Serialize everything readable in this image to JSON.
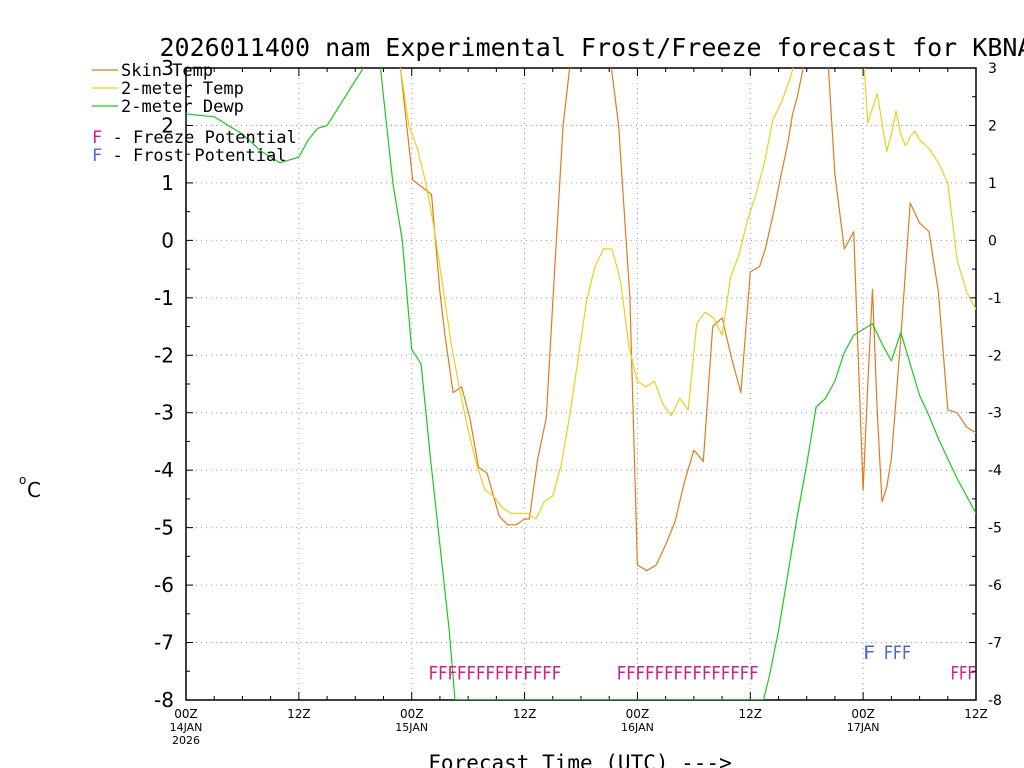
{
  "chart_data": {
    "type": "line",
    "title": "2026011400 nam Experimental Frost/Freeze forecast for KBNA",
    "xlabel": "Forecast Time (UTC) --->",
    "ylabel": "°C",
    "ylabel_unit": "o",
    "ylabel_letter": "C",
    "ylim": [
      -8,
      3
    ],
    "xlim": [
      0,
      84
    ],
    "yticks": [
      3,
      2,
      1,
      0,
      -1,
      -2,
      -3,
      -4,
      -5,
      -6,
      -7,
      -8
    ],
    "ytick_labels": [
      "3",
      "2",
      "1",
      "0",
      "-1",
      "-2",
      "-3",
      "-4",
      "-5",
      "-6",
      "-7",
      "-8"
    ],
    "xticks": [
      {
        "hour": 0,
        "label": "00Z",
        "date": "14JAN",
        "year": "2026"
      },
      {
        "hour": 12,
        "label": "12Z",
        "date": "",
        "year": ""
      },
      {
        "hour": 24,
        "label": "00Z",
        "date": "15JAN",
        "year": ""
      },
      {
        "hour": 36,
        "label": "12Z",
        "date": "",
        "year": ""
      },
      {
        "hour": 48,
        "label": "00Z",
        "date": "16JAN",
        "year": ""
      },
      {
        "hour": 60,
        "label": "12Z",
        "date": "",
        "year": ""
      },
      {
        "hour": 72,
        "label": "00Z",
        "date": "17JAN",
        "year": ""
      },
      {
        "hour": 84,
        "label": "12Z",
        "date": "",
        "year": ""
      }
    ],
    "grid": true,
    "legend": [
      {
        "name": "Skin Temp",
        "color": "#e07b1f"
      },
      {
        "name": "2-meter Temp",
        "color": "#e6d21e"
      },
      {
        "name": "2-meter Dewp",
        "color": "#1ec81e"
      }
    ],
    "potential_legend": [
      {
        "letter": "F",
        "text": " - Freeze Potential",
        "color": "#d21e8c"
      },
      {
        "letter": "F",
        "text": " - Frost Potential",
        "color": "#4b64dc"
      }
    ],
    "series": [
      {
        "name": "Skin Temp",
        "color": "#e07b1f",
        "x": [
          21.1,
          22.8,
          24.1,
          26.1,
          27.0,
          27.5,
          28.4,
          29.3,
          30.2,
          31.1,
          32.0,
          33.3,
          34.2,
          35.1,
          36.0,
          36.5,
          37.4,
          38.3,
          39.2,
          40.1,
          41.0,
          45.0,
          46.0,
          47.2,
          48.0,
          49.0,
          50.0,
          51.0,
          52.0,
          53.0,
          54.0,
          55.0,
          56.0,
          57.0,
          58.0,
          59.0,
          60.0,
          61.0,
          61.6,
          62.5,
          63.1,
          64.0,
          64.5,
          65.0,
          66.0,
          67.0,
          68.2,
          69.0,
          70.0,
          71.0,
          72.0,
          72.5,
          73.0,
          73.5,
          74.0,
          74.5,
          75.0,
          76.0,
          77.0,
          78.0,
          79.0,
          80.0,
          81.0,
          82.0,
          83.0,
          84.0
        ],
        "values": [
          3.3,
          3.0,
          1.05,
          0.8,
          -0.9,
          -1.6,
          -2.65,
          -2.55,
          -3.1,
          -3.95,
          -4.05,
          -4.8,
          -4.95,
          -4.95,
          -4.85,
          -4.85,
          -3.8,
          -3.1,
          -0.5,
          2.0,
          3.3,
          3.3,
          2.0,
          -1.0,
          -5.65,
          -5.75,
          -5.65,
          -5.3,
          -4.9,
          -4.2,
          -3.65,
          -3.85,
          -1.5,
          -1.35,
          -2.05,
          -2.65,
          -0.55,
          -0.45,
          -0.15,
          0.5,
          1.0,
          1.7,
          2.2,
          2.5,
          3.3,
          3.3,
          3.3,
          1.15,
          -0.15,
          0.15,
          -4.35,
          -2.5,
          -0.85,
          -3.0,
          -4.55,
          -4.3,
          -3.8,
          -1.7,
          0.65,
          0.3,
          0.15,
          -0.9,
          -2.95,
          -3.0,
          -3.25,
          -3.35
        ]
      },
      {
        "name": "2-meter Temp",
        "color": "#e6d21e",
        "x": [
          21.1,
          22.8,
          23.7,
          24.6,
          25.5,
          26.4,
          27.3,
          28.2,
          29.1,
          30.0,
          30.9,
          31.8,
          32.7,
          33.6,
          34.5,
          35.4,
          36.3,
          37.2,
          38.1,
          39.0,
          39.9,
          40.8,
          41.7,
          42.6,
          43.5,
          44.4,
          45.3,
          46.2,
          47.1,
          48.0,
          48.9,
          49.8,
          50.7,
          51.6,
          52.5,
          53.4,
          54.3,
          55.2,
          56.1,
          57.0,
          57.9,
          58.8,
          59.7,
          60.6,
          61.5,
          62.4,
          63.3,
          64.2,
          65.1,
          65.6,
          66.0,
          66.5,
          67.0,
          68.2,
          69.0,
          70.0,
          71.0,
          72.0,
          72.5,
          73.0,
          73.5,
          74.0,
          74.5,
          75.0,
          75.5,
          76.0,
          76.5,
          77.0,
          77.5,
          78.0,
          79.0,
          80.0,
          81.0,
          82.0,
          83.0,
          84.0
        ],
        "values": [
          3.3,
          3.0,
          2.0,
          1.6,
          1.0,
          0.2,
          -0.8,
          -1.8,
          -2.6,
          -3.3,
          -3.9,
          -4.35,
          -4.45,
          -4.65,
          -4.75,
          -4.75,
          -4.75,
          -4.85,
          -4.55,
          -4.45,
          -3.9,
          -3.05,
          -2.05,
          -1.05,
          -0.45,
          -0.15,
          -0.15,
          -0.7,
          -1.85,
          -2.45,
          -2.55,
          -2.45,
          -2.85,
          -3.05,
          -2.75,
          -2.95,
          -1.45,
          -1.25,
          -1.35,
          -1.65,
          -0.65,
          -0.25,
          0.35,
          0.8,
          1.35,
          2.1,
          2.4,
          2.8,
          3.3,
          3.3,
          3.3,
          3.3,
          3.3,
          3.3,
          3.3,
          3.3,
          3.3,
          3.3,
          2.05,
          2.3,
          2.55,
          2.05,
          1.55,
          1.85,
          2.25,
          1.85,
          1.65,
          1.8,
          1.9,
          1.75,
          1.6,
          1.35,
          1.0,
          -0.35,
          -0.9,
          -1.2
        ]
      },
      {
        "name": "2-meter Dewp",
        "color": "#1ec81e",
        "x": [
          0.0,
          3.0,
          6.0,
          8.0,
          10.0,
          12.0,
          13.0,
          14.0,
          15.0,
          20.0,
          20.5,
          21.0,
          22.0,
          23.0,
          24.0,
          25.0,
          26.0,
          27.0,
          28.0,
          28.6,
          61.4,
          62.0,
          63.0,
          64.0,
          65.0,
          66.0,
          67.0,
          68.0,
          69.0,
          70.0,
          71.0,
          72.0,
          73.0,
          74.0,
          75.0,
          76.0,
          77.0,
          78.0,
          79.0,
          80.0,
          81.0,
          82.0,
          83.0,
          84.0
        ],
        "values": [
          2.2,
          2.15,
          1.85,
          1.55,
          1.35,
          1.45,
          1.75,
          1.95,
          2.0,
          3.3,
          3.3,
          2.5,
          1.0,
          0.0,
          -1.9,
          -2.15,
          -3.8,
          -5.3,
          -6.8,
          -8.0,
          -8.0,
          -7.6,
          -6.8,
          -5.8,
          -4.8,
          -3.9,
          -2.9,
          -2.75,
          -2.45,
          -1.95,
          -1.65,
          -1.55,
          -1.45,
          -1.8,
          -2.1,
          -1.6,
          -2.15,
          -2.7,
          -3.05,
          -3.45,
          -3.8,
          -4.15,
          -4.45,
          -4.75
        ]
      }
    ],
    "potential_groups": [
      {
        "kind": "freeze",
        "color": "#d21e8c",
        "letters": "FFFFFFFFFFFFFF",
        "start_hour": 25.8,
        "end_hour": 39.9,
        "y": -7.5
      },
      {
        "kind": "freeze",
        "color": "#d21e8c",
        "letters": "FFFFFFFFFFFFFFF",
        "start_hour": 45.8,
        "end_hour": 60.9,
        "y": -7.5
      },
      {
        "kind": "freeze",
        "color": "#d21e8c",
        "letters": "FFF",
        "start_hour": 81.3,
        "end_hour": 84.0,
        "y": -7.5
      },
      {
        "kind": "frost",
        "color": "#4b64dc",
        "letters": "F",
        "start_hour": 72.0,
        "end_hour": 73.3,
        "y": -7.15
      },
      {
        "kind": "frost",
        "color": "#4b64dc",
        "letters": "FFF",
        "start_hour": 74.2,
        "end_hour": 77.1,
        "y": -7.15
      }
    ]
  }
}
